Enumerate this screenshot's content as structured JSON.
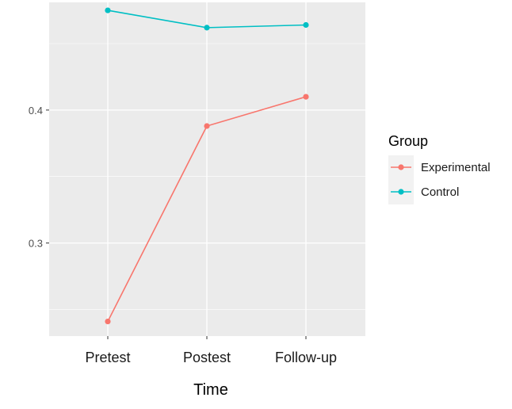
{
  "chart_data": {
    "type": "line",
    "categories": [
      "Pretest",
      "Postest",
      "Follow-up"
    ],
    "xlabel": "Time",
    "ylabel": "",
    "ylim": [
      0.23,
      0.481
    ],
    "yticks": [
      0.3,
      0.4
    ],
    "ytick_labels": [
      "0.3",
      "0.4"
    ],
    "grid": true,
    "legend": {
      "title": "Group",
      "position": "right"
    },
    "series": [
      {
        "name": "Experimental",
        "color": "#F8766D",
        "values": [
          0.241,
          0.388,
          0.41
        ]
      },
      {
        "name": "Control",
        "color": "#00BFC4",
        "values": [
          0.475,
          0.462,
          0.464
        ]
      }
    ]
  }
}
